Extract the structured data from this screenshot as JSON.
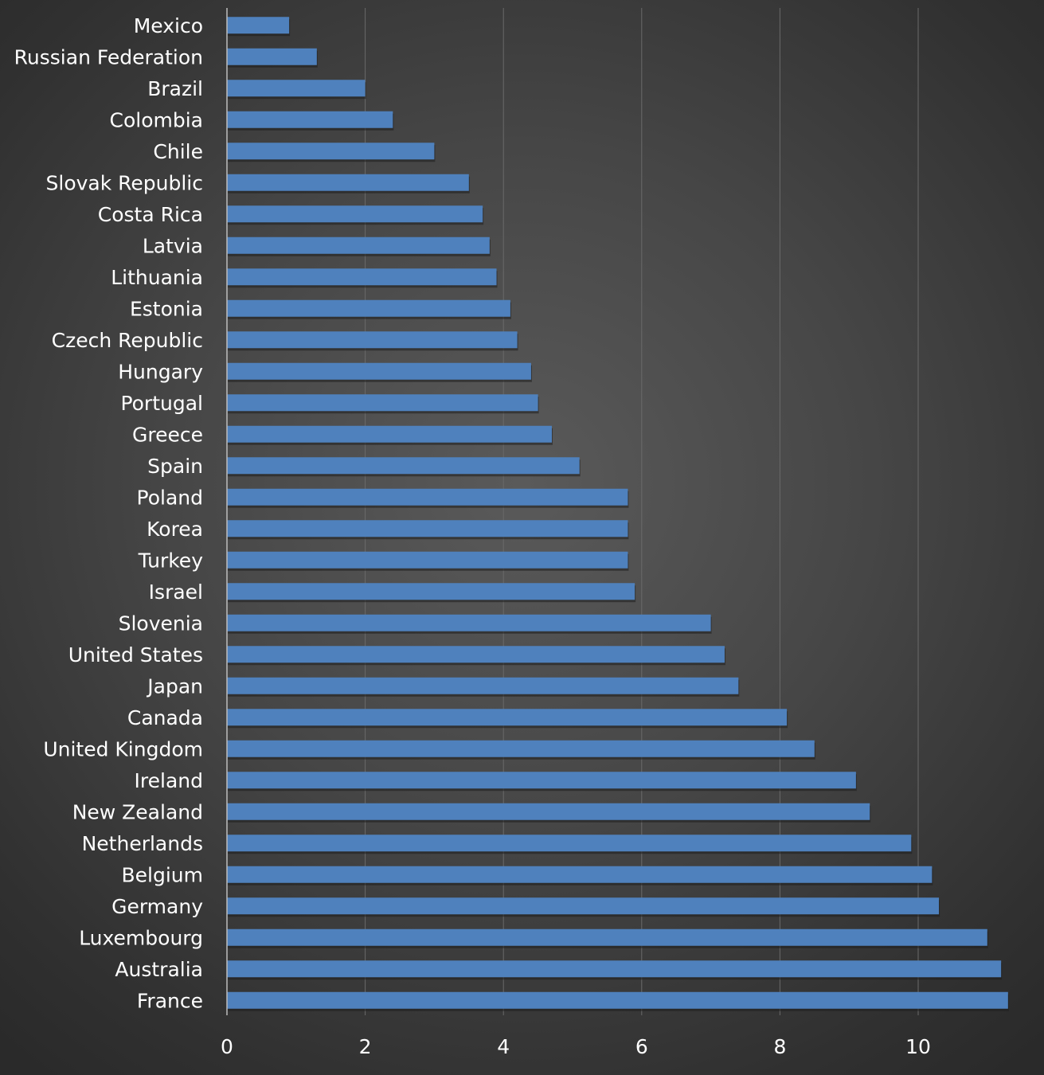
{
  "chart_data": {
    "type": "bar",
    "orientation": "horizontal",
    "categories": [
      "Mexico",
      "Russian Federation",
      "Brazil",
      "Colombia",
      "Chile",
      "Slovak Republic",
      "Costa Rica",
      "Latvia",
      "Lithuania",
      "Estonia",
      "Czech Republic",
      "Hungary",
      "Portugal",
      "Greece",
      "Spain",
      "Poland",
      "Korea",
      "Turkey",
      "Israel",
      "Slovenia",
      "United States",
      "Japan",
      "Canada",
      "United Kingdom",
      "Ireland",
      "New Zealand",
      "Netherlands",
      "Belgium",
      "Germany",
      "Luxembourg",
      "Australia",
      "France"
    ],
    "values": [
      0.9,
      1.3,
      2.0,
      2.4,
      3.0,
      3.5,
      3.7,
      3.8,
      3.9,
      4.1,
      4.2,
      4.4,
      4.5,
      4.7,
      5.1,
      5.8,
      5.8,
      5.8,
      5.9,
      7.0,
      7.2,
      7.4,
      8.1,
      8.5,
      9.1,
      9.3,
      9.9,
      10.2,
      10.3,
      11.0,
      11.2,
      11.3
    ],
    "x_ticks": [
      "0",
      "2",
      "4",
      "6",
      "8",
      "10"
    ],
    "xlim": [
      0,
      11.3
    ],
    "title": "",
    "xlabel": "",
    "ylabel": "",
    "grid": "vertical",
    "legend": "none",
    "colors": {
      "bar": "#4f81bd",
      "gridline": "#6a6a6a",
      "axis": "#bdbdbd",
      "text": "#ffffff",
      "background": "#3f3f3f"
    }
  }
}
